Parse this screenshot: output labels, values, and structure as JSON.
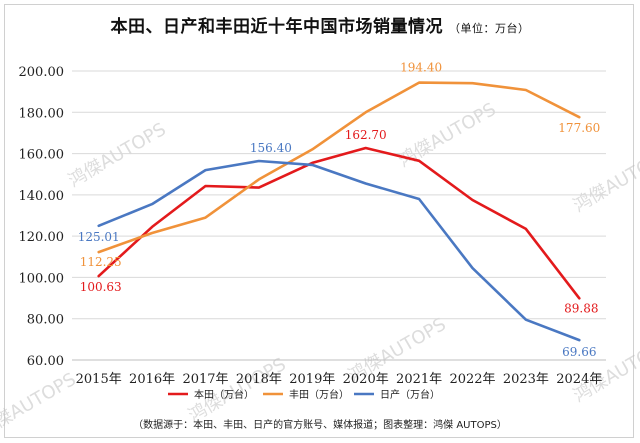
{
  "page": {
    "title": "本田、日产和丰田近十年中国市场销量情况",
    "unit": "（单位：万台）",
    "source": "（数据源于：本田、丰田、日产的官方账号、媒体报道；图表整理：鸿傑 AUTOPS）",
    "watermark": "鸿傑AUTOPS"
  },
  "chart_data": {
    "type": "line",
    "title": "本田、日产和丰田近十年中国市场销量情况",
    "subtitle": "（单位：万台）",
    "xlabel": "",
    "ylabel": "",
    "categories": [
      "2015年",
      "2016年",
      "2017年",
      "2018年",
      "2019年",
      "2020年",
      "2021年",
      "2022年",
      "2023年",
      "2024年"
    ],
    "y_ticks": [
      "60.00",
      "80.00",
      "100.00",
      "120.00",
      "140.00",
      "160.00",
      "180.00",
      "200.00"
    ],
    "ylim": [
      60,
      200
    ],
    "grid": true,
    "legend_position": "bottom",
    "series": [
      {
        "name": "本田（万台）",
        "color": "#e31a1c",
        "values": [
          100.63,
          124.5,
          144.3,
          143.5,
          155.5,
          162.7,
          156.5,
          137.5,
          123.5,
          89.88
        ],
        "labels": [
          {
            "index": 0,
            "text": "100.63"
          },
          {
            "index": 5,
            "text": "162.70"
          },
          {
            "index": 9,
            "text": "89.88"
          }
        ]
      },
      {
        "name": "丰田（万台）",
        "color": "#f0923a",
        "values": [
          112.25,
          121.5,
          129.0,
          147.5,
          162.0,
          180.0,
          194.4,
          194.1,
          190.8,
          177.6
        ],
        "labels": [
          {
            "index": 0,
            "text": "112.25"
          },
          {
            "index": 6,
            "text": "194.40"
          },
          {
            "index": 9,
            "text": "177.60"
          }
        ]
      },
      {
        "name": "日产（万台）",
        "color": "#4a78c2",
        "values": [
          125.01,
          135.5,
          152.0,
          156.4,
          154.5,
          145.5,
          138.0,
          104.5,
          79.5,
          69.66
        ],
        "labels": [
          {
            "index": 0,
            "text": "125.01"
          },
          {
            "index": 3,
            "text": "156.40"
          },
          {
            "index": 9,
            "text": "69.66"
          }
        ]
      }
    ]
  }
}
